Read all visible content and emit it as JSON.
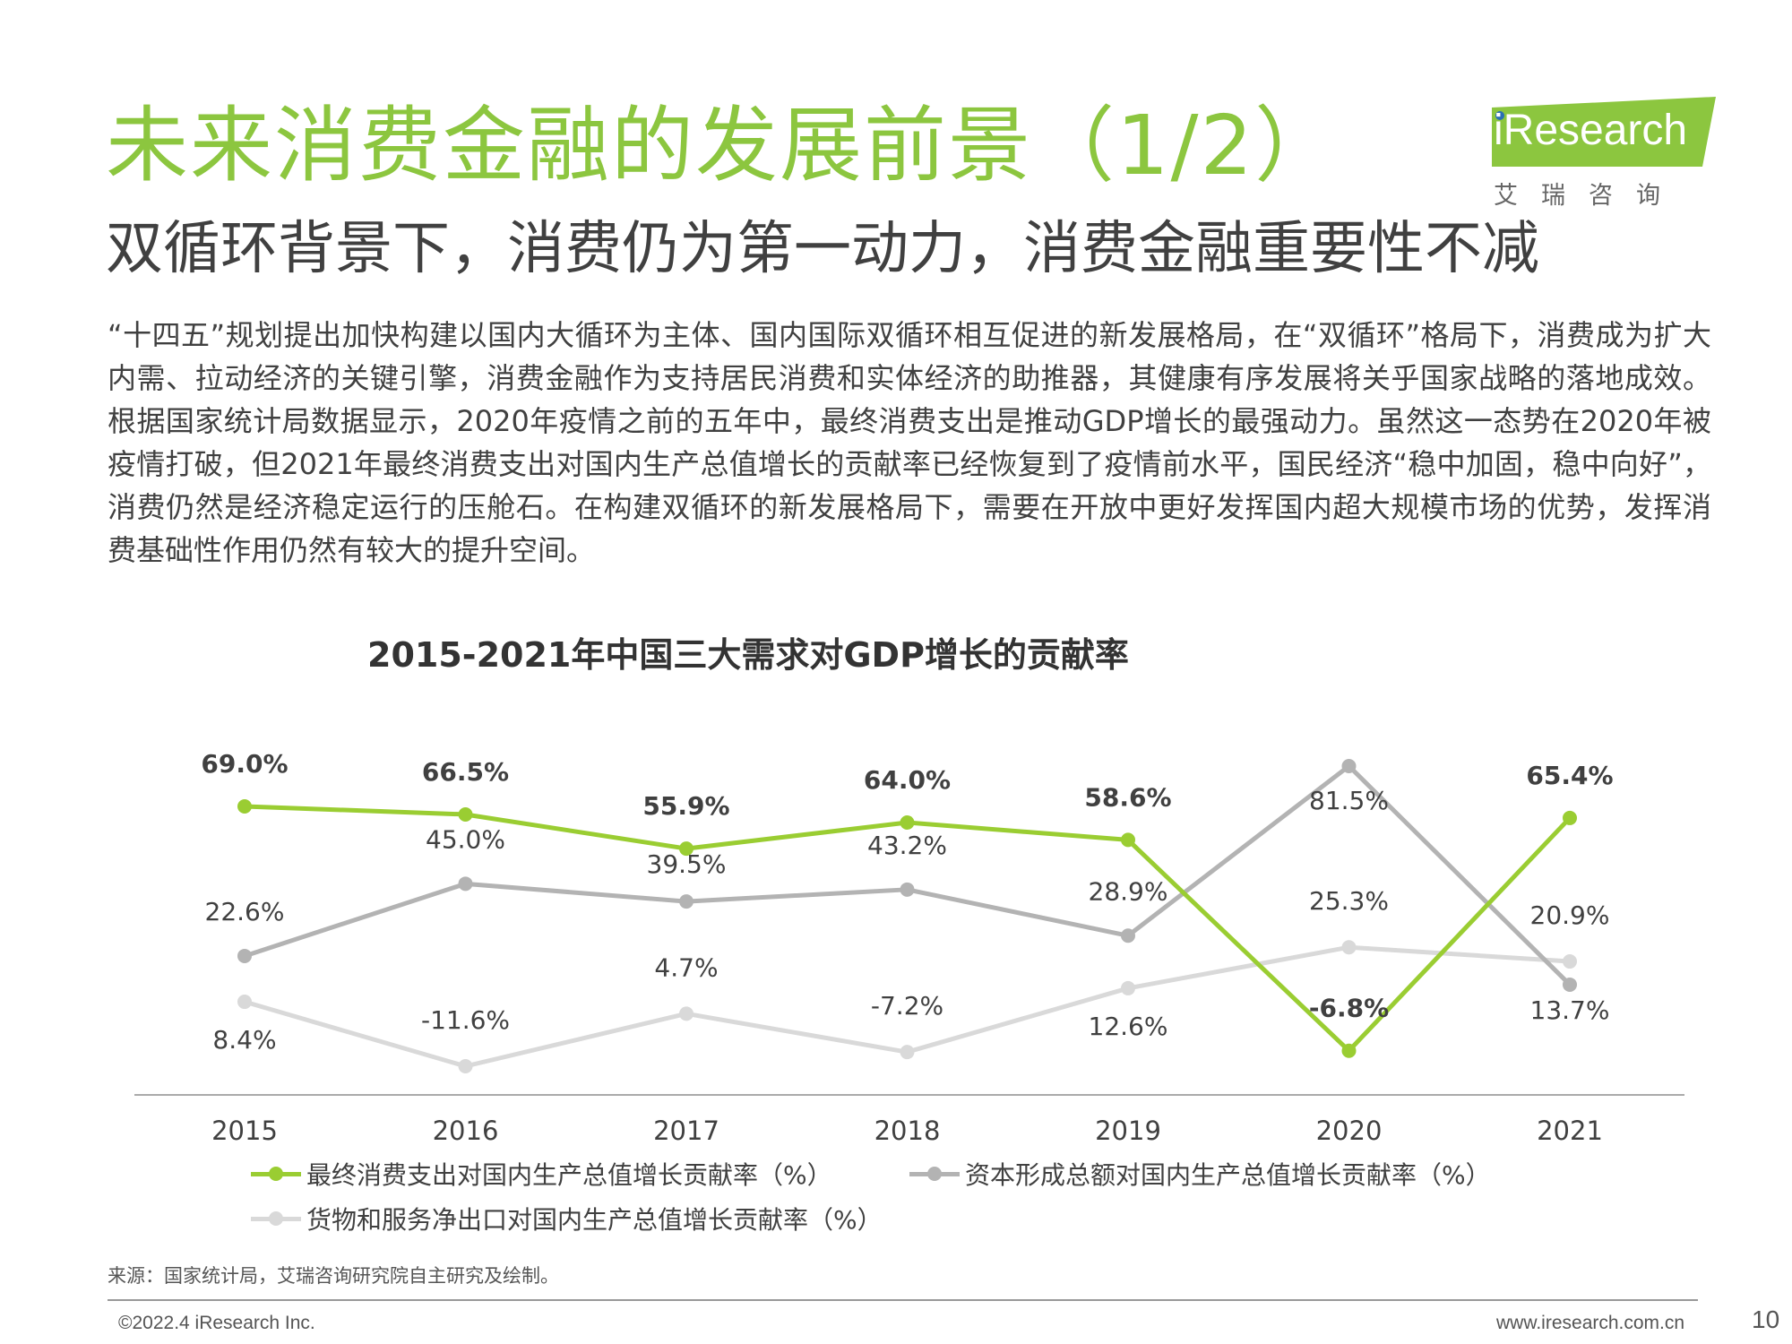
{
  "header": {
    "title": "未来消费金融的发展前景（1/2）",
    "subtitle": "双循环背景下，消费仍为第一动力，消费金融重要性不减"
  },
  "logo": {
    "brand": "iResearch",
    "cn": "艾瑞咨询",
    "band_color": "#8cc63f"
  },
  "body_text": "“十四五”规划提出加快构建以国内大循环为主体、国内国际双循环相互促进的新发展格局，在“双循环”格局下，消费成为扩大内需、拉动经济的关键引擎，消费金融作为支持居民消费和实体经济的助推器，其健康有序发展将关乎国家战略的落地成效。根据国家统计局数据显示，2020年疫情之前的五年中，最终消费支出是推动GDP增长的最强动力。虽然这一态势在2020年被疫情打破，但2021年最终消费支出对国内生产总值增长的贡献率已经恢复到了疫情前水平，国民经济“稳中加固，稳中向好”，消费仍然是经济稳定运行的压舱石。在构建双循环的新发展格局下，需要在开放中更好发挥国内超大规模市场的优势，发挥消费基础性作用仍然有较大的提升空间。",
  "chart_data": {
    "type": "line",
    "title": "2015-2021年中国三大需求对GDP增长的贡献率",
    "x": [
      "2015",
      "2016",
      "2017",
      "2018",
      "2019",
      "2020",
      "2021"
    ],
    "series": [
      {
        "name": "最终消费支出对国内生产总值增长贡献率（%）",
        "values": [
          69.0,
          66.5,
          55.9,
          64.0,
          58.6,
          -6.8,
          65.4
        ],
        "labels": [
          "69.0%",
          "66.5%",
          "55.9%",
          "64.0%",
          "58.6%",
          "-6.8%",
          "65.4%"
        ],
        "color": "#9acd32",
        "label_bold": true
      },
      {
        "name": "资本形成总额对国内生产总值增长贡献率（%）",
        "values": [
          22.6,
          45.0,
          39.5,
          43.2,
          28.9,
          81.5,
          13.7
        ],
        "labels": [
          "22.6%",
          "45.0%",
          "39.5%",
          "43.2%",
          "28.9%",
          "81.5%",
          "13.7%"
        ],
        "color": "#b3b3b3",
        "label_bold": false
      },
      {
        "name": "货物和服务净出口对国内生产总值增长贡献率（%）",
        "values": [
          8.4,
          -11.6,
          4.7,
          -7.2,
          12.6,
          25.3,
          20.9
        ],
        "labels": [
          "8.4%",
          "-11.6%",
          "4.7%",
          "-7.2%",
          "12.6%",
          "25.3%",
          "20.9%"
        ],
        "color": "#d9d9d9",
        "label_bold": false
      }
    ],
    "legend_position": "bottom",
    "grid": false
  },
  "source": "来源：国家统计局，艾瑞咨询研究院自主研究及绘制。",
  "footer": {
    "copyright": "©2022.4 iResearch Inc.",
    "website": "www.iresearch.com.cn",
    "page": "10"
  }
}
